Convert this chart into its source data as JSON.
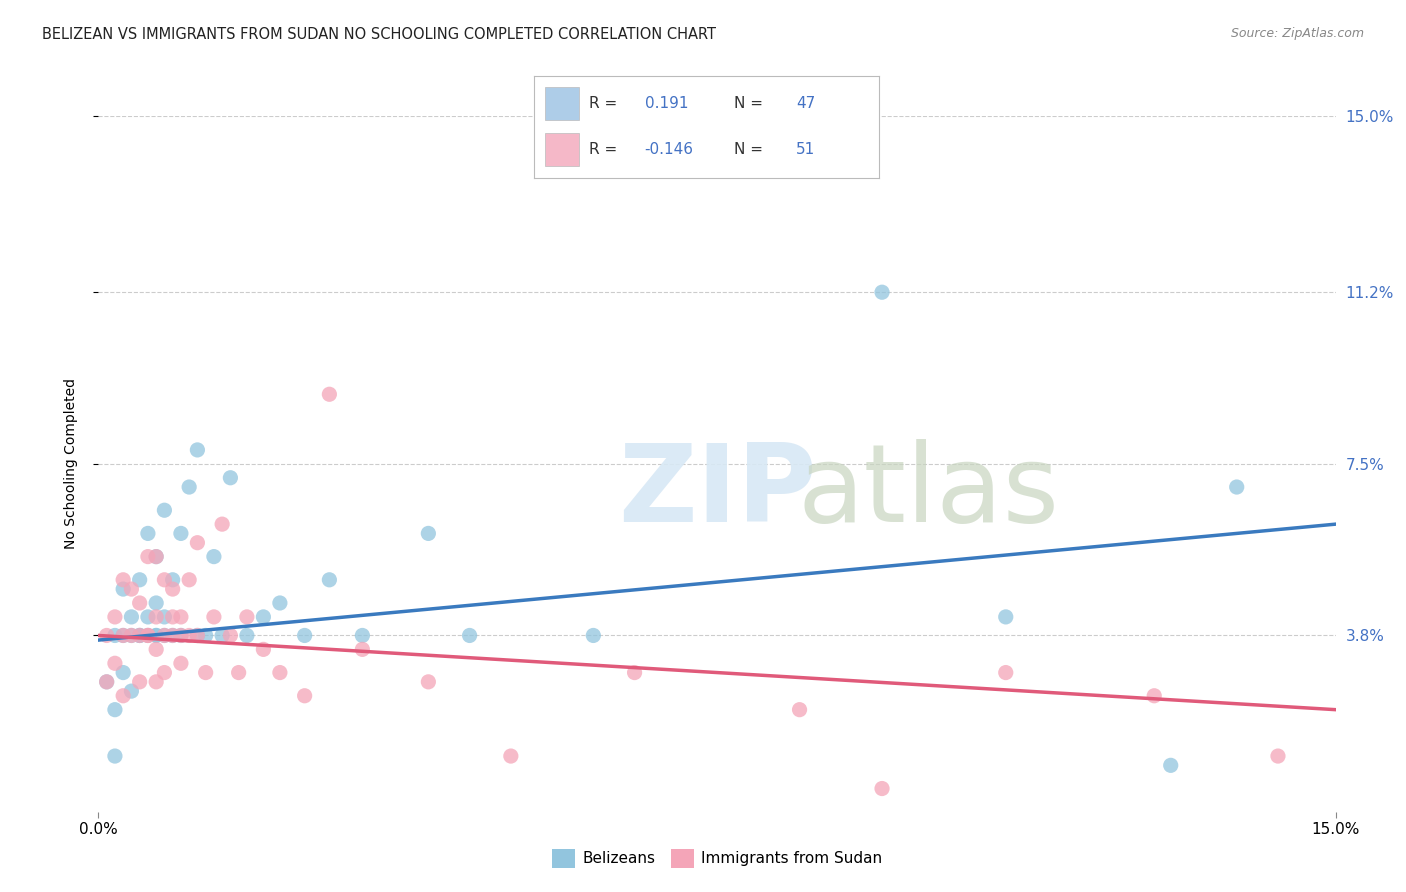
{
  "title": "BELIZEAN VS IMMIGRANTS FROM SUDAN NO SCHOOLING COMPLETED CORRELATION CHART",
  "source": "Source: ZipAtlas.com",
  "ylabel": "No Schooling Completed",
  "xlim": [
    0.0,
    0.15
  ],
  "ylim": [
    0.0,
    0.15
  ],
  "ytick_values": [
    0.038,
    0.075,
    0.112,
    0.15
  ],
  "ytick_labels": [
    "3.8%",
    "7.5%",
    "11.2%",
    "15.0%"
  ],
  "belizean_color": "#92c5de",
  "sudan_color": "#f4a5b8",
  "belizean_line_color": "#3a7abf",
  "sudan_line_color": "#e05a7a",
  "legend_color_belizean": "#aecde8",
  "legend_color_sudan": "#f5b8c8",
  "belizean_x": [
    0.001,
    0.002,
    0.002,
    0.002,
    0.003,
    0.003,
    0.003,
    0.004,
    0.004,
    0.004,
    0.005,
    0.005,
    0.005,
    0.006,
    0.006,
    0.006,
    0.007,
    0.007,
    0.007,
    0.007,
    0.008,
    0.008,
    0.008,
    0.009,
    0.009,
    0.01,
    0.01,
    0.011,
    0.012,
    0.012,
    0.013,
    0.014,
    0.015,
    0.016,
    0.018,
    0.02,
    0.022,
    0.025,
    0.028,
    0.032,
    0.04,
    0.045,
    0.06,
    0.095,
    0.11,
    0.13,
    0.138
  ],
  "belizean_y": [
    0.028,
    0.038,
    0.022,
    0.012,
    0.038,
    0.048,
    0.03,
    0.038,
    0.042,
    0.026,
    0.038,
    0.05,
    0.038,
    0.06,
    0.038,
    0.042,
    0.038,
    0.045,
    0.055,
    0.038,
    0.042,
    0.065,
    0.038,
    0.05,
    0.038,
    0.06,
    0.038,
    0.07,
    0.038,
    0.078,
    0.038,
    0.055,
    0.038,
    0.072,
    0.038,
    0.042,
    0.045,
    0.038,
    0.05,
    0.038,
    0.06,
    0.038,
    0.038,
    0.112,
    0.042,
    0.01,
    0.07
  ],
  "sudan_x": [
    0.001,
    0.001,
    0.002,
    0.002,
    0.003,
    0.003,
    0.003,
    0.004,
    0.004,
    0.005,
    0.005,
    0.005,
    0.006,
    0.006,
    0.006,
    0.007,
    0.007,
    0.007,
    0.007,
    0.008,
    0.008,
    0.008,
    0.009,
    0.009,
    0.009,
    0.01,
    0.01,
    0.01,
    0.011,
    0.011,
    0.012,
    0.012,
    0.013,
    0.014,
    0.015,
    0.016,
    0.017,
    0.018,
    0.02,
    0.022,
    0.025,
    0.028,
    0.032,
    0.04,
    0.05,
    0.065,
    0.085,
    0.095,
    0.11,
    0.128,
    0.143
  ],
  "sudan_y": [
    0.038,
    0.028,
    0.042,
    0.032,
    0.038,
    0.05,
    0.025,
    0.038,
    0.048,
    0.038,
    0.045,
    0.028,
    0.038,
    0.055,
    0.038,
    0.042,
    0.035,
    0.055,
    0.028,
    0.05,
    0.038,
    0.03,
    0.042,
    0.038,
    0.048,
    0.038,
    0.042,
    0.032,
    0.038,
    0.05,
    0.038,
    0.058,
    0.03,
    0.042,
    0.062,
    0.038,
    0.03,
    0.042,
    0.035,
    0.03,
    0.025,
    0.09,
    0.035,
    0.028,
    0.012,
    0.03,
    0.022,
    0.005,
    0.03,
    0.025,
    0.012
  ],
  "belizean_line_x0": 0.0,
  "belizean_line_y0": 0.037,
  "belizean_line_x1": 0.15,
  "belizean_line_y1": 0.062,
  "sudan_line_x0": 0.0,
  "sudan_line_y0": 0.038,
  "sudan_line_x1": 0.15,
  "sudan_line_y1": 0.022,
  "grid_color": "#cccccc",
  "background_color": "#ffffff"
}
